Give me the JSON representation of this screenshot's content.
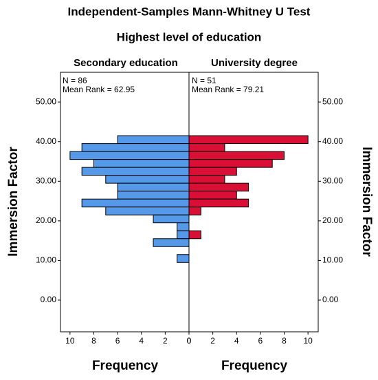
{
  "chart_data": {
    "type": "histogram",
    "title": "Independent-Samples Mann-Whitney U Test",
    "subtitle": "Highest level of education",
    "xlabel": "Frequency",
    "ylabel": "Immersion Factor",
    "bins": [
      41.5,
      39.5,
      37.5,
      35.5,
      33.5,
      31.5,
      29.5,
      27.5,
      25.5,
      23.5,
      21.5,
      19.5,
      17.5,
      15.5,
      13.5,
      11.5,
      9.5
    ],
    "series": [
      {
        "name": "Secondary education",
        "color": "#5599e8",
        "annotations": [
          "N = 86",
          "Mean Rank = 62.95"
        ],
        "values": [
          6,
          9,
          10,
          8,
          9,
          7,
          6,
          6,
          9,
          7,
          3,
          1,
          1,
          3,
          0,
          1
        ]
      },
      {
        "name": "University degree",
        "color": "#d90f36",
        "annotations": [
          "N = 51",
          "Mean Rank = 79.21"
        ],
        "values": [
          10,
          3,
          8,
          7,
          4,
          3,
          5,
          4,
          5,
          1,
          0,
          0,
          1,
          0,
          0,
          0
        ]
      }
    ],
    "xlim": [
      0,
      10.8
    ],
    "xticks": [
      0,
      2,
      4,
      6,
      8,
      10
    ],
    "ylim": [
      -8,
      57.5
    ],
    "yticks": [
      {
        "value": 0,
        "label": "0.00"
      },
      {
        "value": 10,
        "label": "10.00"
      },
      {
        "value": 20,
        "label": "20.00"
      },
      {
        "value": 30,
        "label": "30.00"
      },
      {
        "value": 40,
        "label": "40.00"
      },
      {
        "value": 50,
        "label": "50.00"
      }
    ]
  }
}
